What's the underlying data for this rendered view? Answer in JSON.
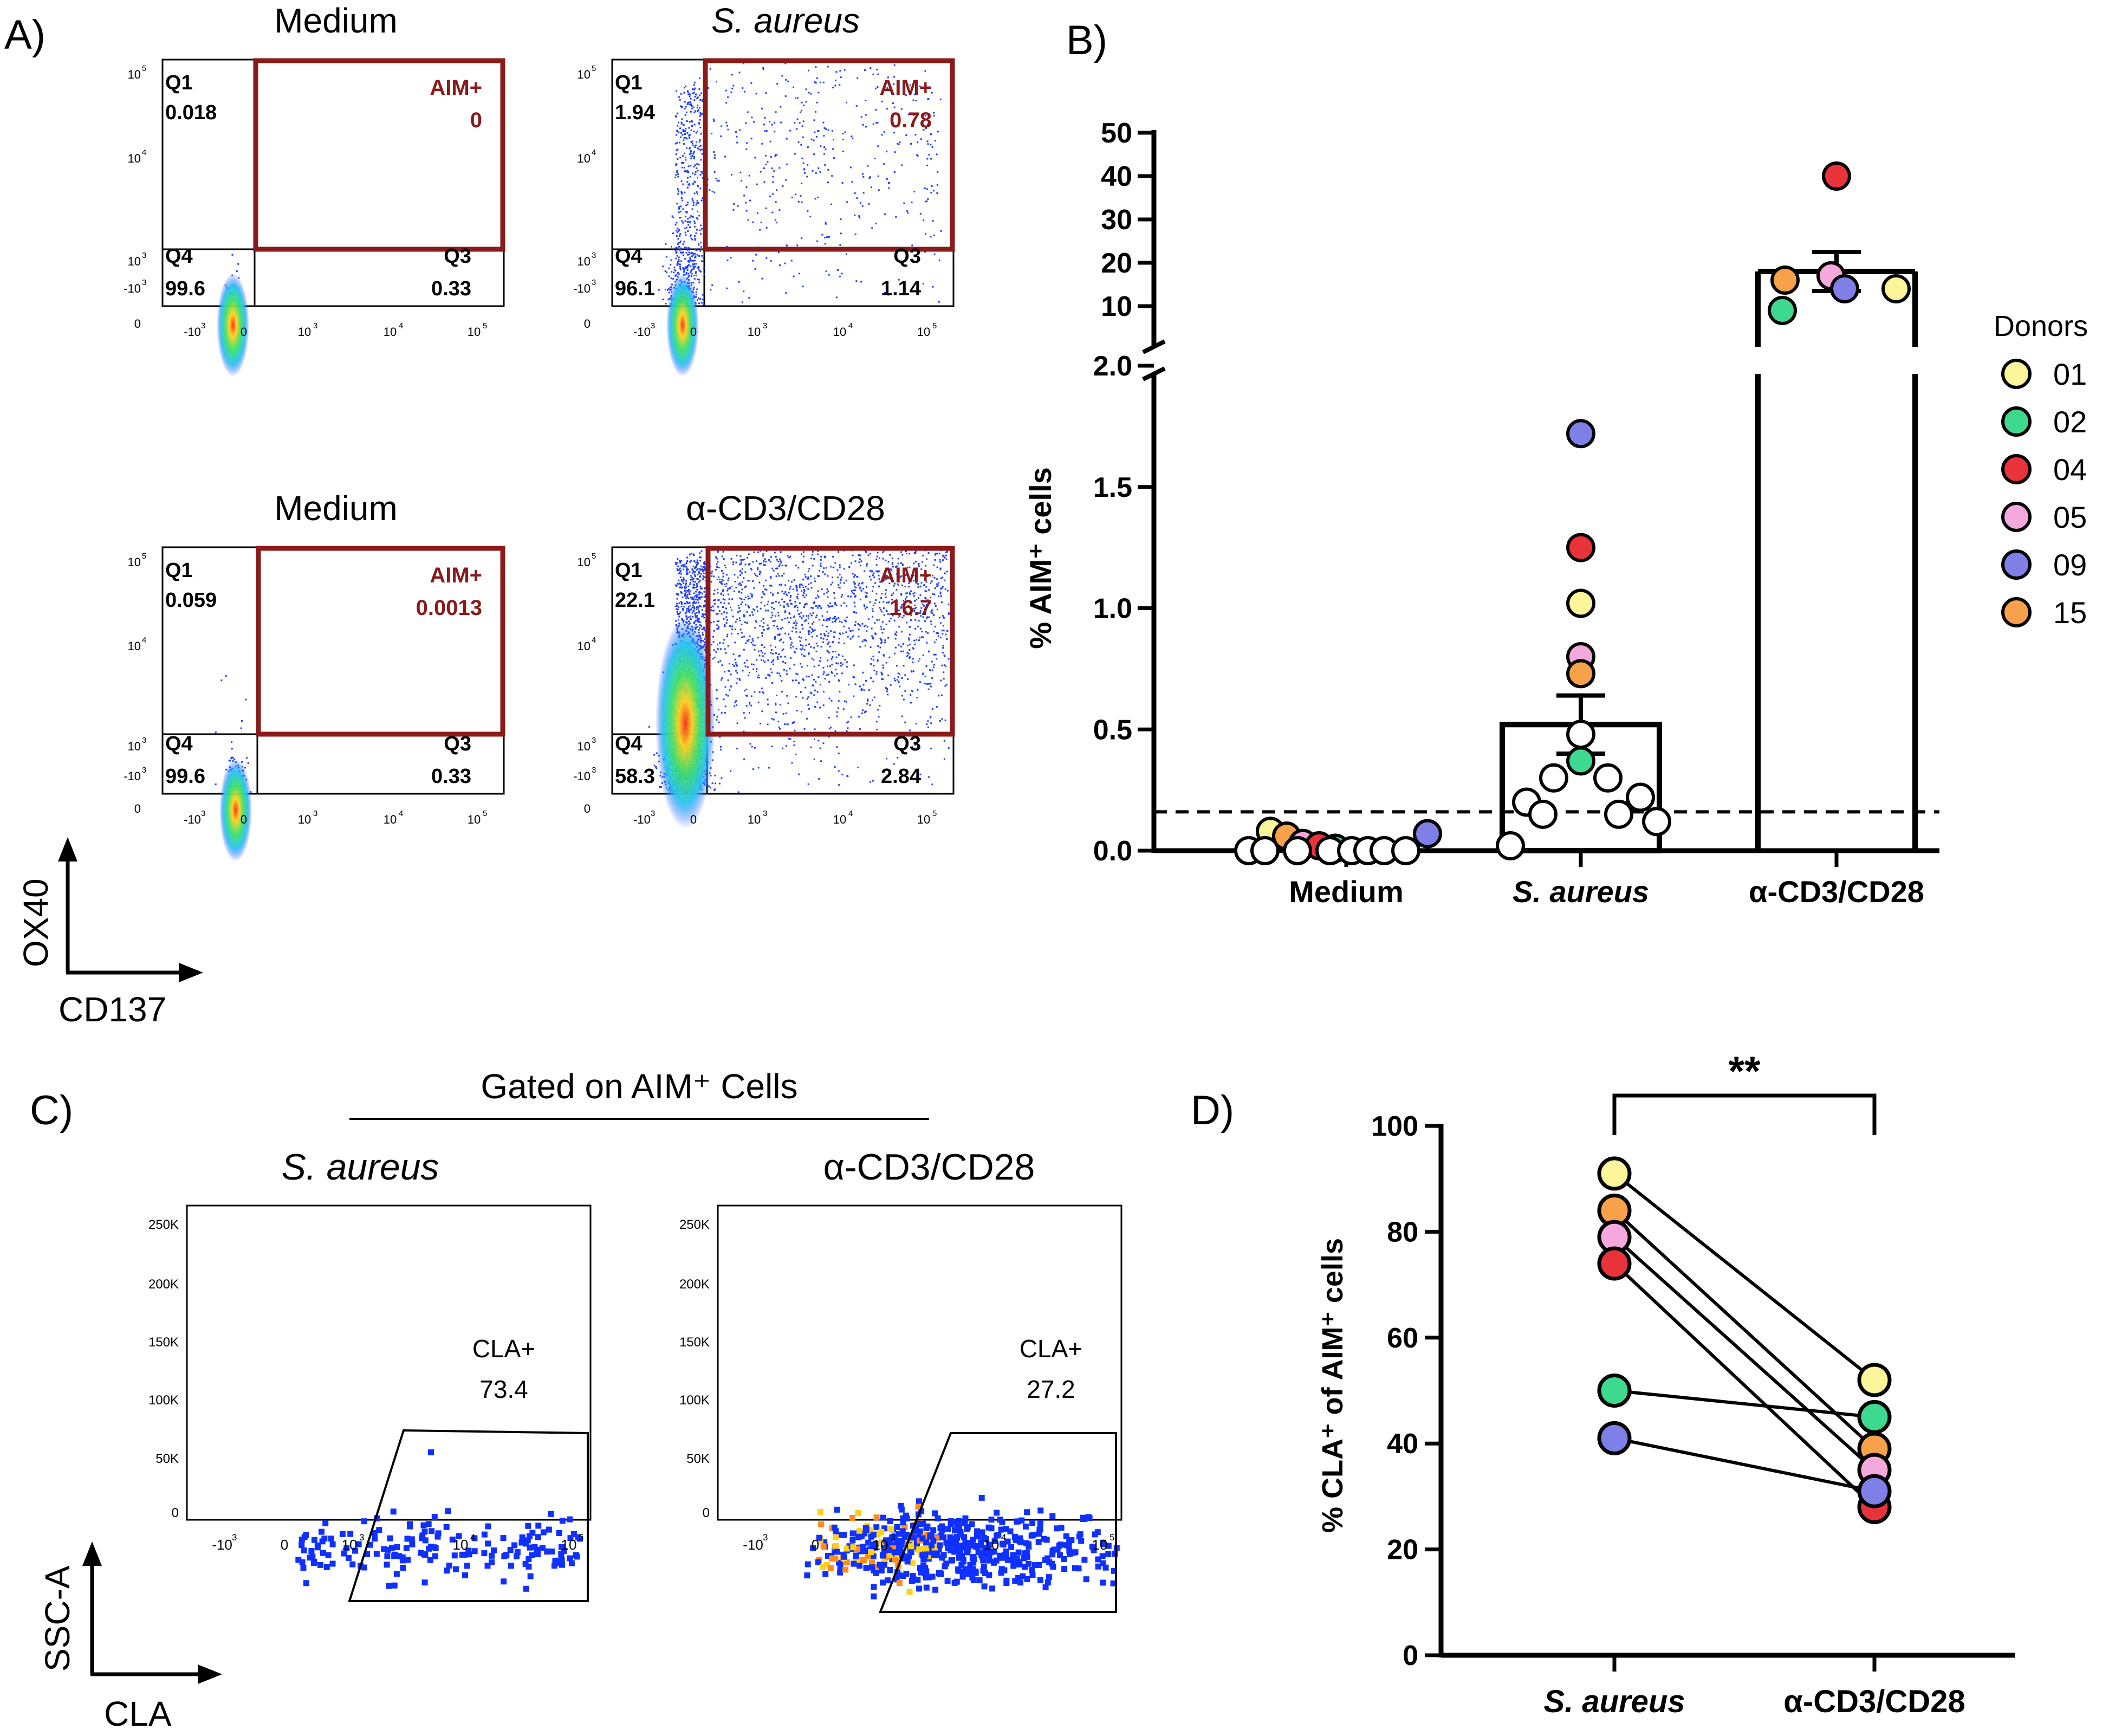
{
  "colors": {
    "aim_gate": "#8b1a1a",
    "axis": "#000000",
    "flow_dot": "#1f3fff",
    "donor_01": "#fdf59a",
    "donor_02": "#3dd98f",
    "donor_04": "#e8333a",
    "donor_05": "#f5a8dc",
    "donor_09": "#7f7fe8",
    "donor_15": "#f7a24a"
  },
  "panel_labels": {
    "a": "A)",
    "b": "B)",
    "c": "C)",
    "d": "D)"
  },
  "panel_a": {
    "x_axis_label": "CD137",
    "y_axis_label": "OX40",
    "tick_labels": {
      "neg1000": "-10",
      "zero": "0",
      "e3": "10",
      "e4": "10",
      "e5": "10",
      "exp_neg3": "3",
      "exp3": "3",
      "exp4": "4",
      "exp5": "5"
    },
    "plots": [
      {
        "title": "Medium",
        "italic": false,
        "q1_label": "Q1",
        "q1": "0.018",
        "aim_label": "AIM+",
        "aim": "0",
        "q3_label": "Q3",
        "q3": "0.33",
        "q4_label": "Q4",
        "q4": "99.6"
      },
      {
        "title": "S. aureus",
        "italic": true,
        "q1_label": "Q1",
        "q1": "1.94",
        "aim_label": "AIM+",
        "aim": "0.78",
        "q3_label": "Q3",
        "q3": "1.14",
        "q4_label": "Q4",
        "q4": "96.1"
      },
      {
        "title": "Medium",
        "italic": false,
        "q1_label": "Q1",
        "q1": "0.059",
        "aim_label": "AIM+",
        "aim": "0.0013",
        "q3_label": "Q3",
        "q3": "0.33",
        "q4_label": "Q4",
        "q4": "99.6"
      },
      {
        "title": "α-CD3/CD28",
        "italic": false,
        "q1_label": "Q1",
        "q1": "22.1",
        "aim_label": "AIM+",
        "aim": "16.7",
        "q3_label": "Q3",
        "q3": "2.84",
        "q4_label": "Q4",
        "q4": "58.3"
      }
    ]
  },
  "panel_c": {
    "header": "Gated on AIM⁺ Cells",
    "x_axis_label": "CLA",
    "y_axis_label": "SSC-A",
    "y_ticks": [
      "250K",
      "200K",
      "150K",
      "100K",
      "50K",
      "0"
    ],
    "plots": [
      {
        "title": "S. aureus",
        "italic": true,
        "gate_label": "CLA+",
        "gate_value": "73.4"
      },
      {
        "title": "α-CD3/CD28",
        "italic": false,
        "gate_label": "CLA+",
        "gate_value": "27.2"
      }
    ]
  },
  "chart_data": [
    {
      "type": "bar",
      "panel": "B",
      "title": "",
      "ylabel": "% AIM⁺ cells",
      "categories": [
        "Medium",
        "S. aureus",
        "α-CD3/CD28"
      ],
      "bar_means": [
        0.0,
        0.52,
        18.0
      ],
      "error_sem": [
        0.0,
        0.12,
        4.5
      ],
      "y_axis_break": {
        "lower_range": [
          0,
          2.0
        ],
        "upper_range": [
          10,
          50
        ]
      },
      "lower_ticks": [
        "0.0",
        "0.5",
        "1.0",
        "1.5",
        "2.0"
      ],
      "upper_ticks": [
        "10",
        "20",
        "30",
        "40",
        "50"
      ],
      "threshold_dashed_line": 0.16,
      "legend_title": "Donors",
      "legend": [
        {
          "donor": "01",
          "color": "#fdf59a"
        },
        {
          "donor": "02",
          "color": "#3dd98f"
        },
        {
          "donor": "04",
          "color": "#e8333a"
        },
        {
          "donor": "05",
          "color": "#f5a8dc"
        },
        {
          "donor": "09",
          "color": "#7f7fe8"
        },
        {
          "donor": "15",
          "color": "#f7a24a"
        }
      ],
      "points": [
        {
          "group": "Medium",
          "value": 0.08,
          "color": "#fdf59a"
        },
        {
          "group": "Medium",
          "value": 0.06,
          "color": "#f7a24a"
        },
        {
          "group": "Medium",
          "value": 0.03,
          "color": "#f5a8dc"
        },
        {
          "group": "Medium",
          "value": 0.02,
          "color": "#e8333a"
        },
        {
          "group": "Medium",
          "value": 0.01,
          "color": "#3dd98f"
        },
        {
          "group": "Medium",
          "value": 0.07,
          "color": "#7f7fe8"
        },
        {
          "group": "Medium",
          "value": 0.0,
          "color": "#ffffff"
        },
        {
          "group": "Medium",
          "value": 0.0,
          "color": "#ffffff"
        },
        {
          "group": "Medium",
          "value": 0.0,
          "color": "#ffffff"
        },
        {
          "group": "Medium",
          "value": 0.0,
          "color": "#ffffff"
        },
        {
          "group": "Medium",
          "value": 0.0,
          "color": "#ffffff"
        },
        {
          "group": "Medium",
          "value": 0.0,
          "color": "#ffffff"
        },
        {
          "group": "Medium",
          "value": 0.0,
          "color": "#ffffff"
        },
        {
          "group": "Medium",
          "value": 0.0,
          "color": "#ffffff"
        },
        {
          "group": "S. aureus",
          "value": 1.72,
          "color": "#7f7fe8"
        },
        {
          "group": "S. aureus",
          "value": 1.25,
          "color": "#e8333a"
        },
        {
          "group": "S. aureus",
          "value": 1.02,
          "color": "#fdf59a"
        },
        {
          "group": "S. aureus",
          "value": 0.8,
          "color": "#f5a8dc"
        },
        {
          "group": "S. aureus",
          "value": 0.73,
          "color": "#f7a24a"
        },
        {
          "group": "S. aureus",
          "value": 0.37,
          "color": "#3dd98f"
        },
        {
          "group": "S. aureus",
          "value": 0.48,
          "color": "#ffffff"
        },
        {
          "group": "S. aureus",
          "value": 0.3,
          "color": "#ffffff"
        },
        {
          "group": "S. aureus",
          "value": 0.3,
          "color": "#ffffff"
        },
        {
          "group": "S. aureus",
          "value": 0.2,
          "color": "#ffffff"
        },
        {
          "group": "S. aureus",
          "value": 0.22,
          "color": "#ffffff"
        },
        {
          "group": "S. aureus",
          "value": 0.15,
          "color": "#ffffff"
        },
        {
          "group": "S. aureus",
          "value": 0.15,
          "color": "#ffffff"
        },
        {
          "group": "S. aureus",
          "value": 0.12,
          "color": "#ffffff"
        },
        {
          "group": "S. aureus",
          "value": 0.02,
          "color": "#ffffff"
        },
        {
          "group": "α-CD3/CD28",
          "value": 40,
          "color": "#e8333a"
        },
        {
          "group": "α-CD3/CD28",
          "value": 17,
          "color": "#f5a8dc"
        },
        {
          "group": "α-CD3/CD28",
          "value": 16,
          "color": "#f7a24a"
        },
        {
          "group": "α-CD3/CD28",
          "value": 14,
          "color": "#fdf59a"
        },
        {
          "group": "α-CD3/CD28",
          "value": 14,
          "color": "#7f7fe8"
        },
        {
          "group": "α-CD3/CD28",
          "value": 9,
          "color": "#3dd98f"
        }
      ]
    },
    {
      "type": "line",
      "panel": "D",
      "title": "",
      "ylabel": "% CLA⁺ of AIM⁺ cells",
      "categories": [
        "S. aureus",
        "α-CD3/CD28"
      ],
      "ylim": [
        0,
        100
      ],
      "y_ticks": [
        "0",
        "20",
        "40",
        "60",
        "80",
        "100"
      ],
      "significance": "**",
      "series": [
        {
          "donor": "01",
          "color": "#fdf59a",
          "values": [
            91,
            52
          ]
        },
        {
          "donor": "15",
          "color": "#f7a24a",
          "values": [
            84,
            39
          ]
        },
        {
          "donor": "05",
          "color": "#f5a8dc",
          "values": [
            79,
            35
          ]
        },
        {
          "donor": "04",
          "color": "#e8333a",
          "values": [
            74,
            28
          ]
        },
        {
          "donor": "02",
          "color": "#3dd98f",
          "values": [
            50,
            45
          ]
        },
        {
          "donor": "09",
          "color": "#7f7fe8",
          "values": [
            41,
            31
          ]
        }
      ]
    }
  ]
}
